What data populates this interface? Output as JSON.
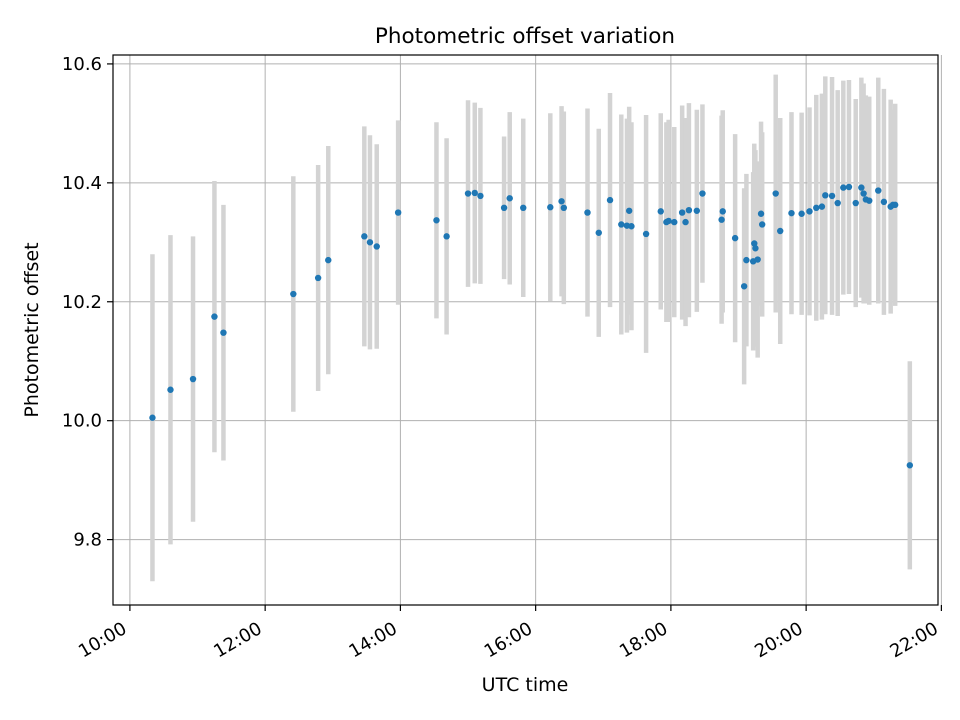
{
  "chart_data": {
    "type": "scatter",
    "title": "Photometric offset variation",
    "xlabel": "UTC time",
    "ylabel": "Photometric offset",
    "x_unit": "hour",
    "xlim": [
      "09:45",
      "21:57"
    ],
    "ylim": [
      9.69,
      10.615
    ],
    "x_ticks": [
      "10:00",
      "12:00",
      "14:00",
      "16:00",
      "18:00",
      "20:00",
      "22:00"
    ],
    "y_ticks": [
      "9.8",
      "10.0",
      "10.2",
      "10.4",
      "10.6"
    ],
    "grid": true,
    "colors": {
      "point": "#1f77b4",
      "errorbar": "#d3d3d3",
      "grid": "#b0b0b0"
    },
    "series": [
      {
        "x": [
          "10:20",
          "10:36",
          "10:56",
          "11:15",
          "11:23",
          "12:25",
          "12:47",
          "12:56",
          "13:28",
          "13:33",
          "13:39",
          "13:58",
          "14:32",
          "14:41",
          "15:00",
          "15:06",
          "15:11",
          "15:32",
          "15:37",
          "15:49",
          "16:13",
          "16:23",
          "16:25",
          "16:46",
          "16:56",
          "17:06",
          "17:16",
          "17:21",
          "17:23",
          "17:25",
          "17:38",
          "17:51",
          "17:56",
          "17:58",
          "18:03",
          "18:10",
          "18:13",
          "18:16",
          "18:23",
          "18:28",
          "18:45",
          "18:46",
          "18:57",
          "19:05",
          "19:07",
          "19:13",
          "19:14",
          "19:15",
          "19:17",
          "19:20",
          "19:21",
          "19:33",
          "19:37",
          "19:47",
          "19:56",
          "20:03",
          "20:09",
          "20:14",
          "20:17",
          "20:23",
          "20:28",
          "20:33",
          "20:38",
          "20:44",
          "20:49",
          "20:51",
          "20:53",
          "20:56",
          "21:04",
          "21:09",
          "21:15",
          "21:17",
          "21:19",
          "21:32"
        ],
        "y": [
          10.005,
          10.052,
          10.07,
          10.175,
          10.148,
          10.213,
          10.24,
          10.27,
          10.31,
          10.3,
          10.293,
          10.35,
          10.337,
          10.31,
          10.382,
          10.383,
          10.378,
          10.358,
          10.374,
          10.358,
          10.359,
          10.369,
          10.358,
          10.35,
          10.316,
          10.371,
          10.33,
          10.328,
          10.353,
          10.327,
          10.314,
          10.352,
          10.334,
          10.336,
          10.334,
          10.35,
          10.334,
          10.354,
          10.353,
          10.382,
          10.338,
          10.352,
          10.307,
          10.226,
          10.27,
          10.268,
          10.298,
          10.29,
          10.271,
          10.348,
          10.33,
          10.382,
          10.319,
          10.349,
          10.348,
          10.352,
          10.358,
          10.36,
          10.379,
          10.378,
          10.366,
          10.392,
          10.393,
          10.366,
          10.392,
          10.382,
          10.372,
          10.37,
          10.387,
          10.368,
          10.36,
          10.363,
          10.363,
          9.925
        ],
        "yerr": [
          0.275,
          0.26,
          0.24,
          0.228,
          0.215,
          0.198,
          0.19,
          0.192,
          0.185,
          0.18,
          0.172,
          0.155,
          0.165,
          0.165,
          0.157,
          0.152,
          0.148,
          0.12,
          0.145,
          0.15,
          0.158,
          0.16,
          0.162,
          0.175,
          0.175,
          0.18,
          0.185,
          0.18,
          0.175,
          0.175,
          0.2,
          0.165,
          0.168,
          0.17,
          0.16,
          0.18,
          0.175,
          0.18,
          0.17,
          0.15,
          0.175,
          0.17,
          0.175,
          0.165,
          0.145,
          0.15,
          0.168,
          0.165,
          0.165,
          0.155,
          0.155,
          0.2,
          0.19,
          0.17,
          0.17,
          0.175,
          0.19,
          0.19,
          0.2,
          0.2,
          0.19,
          0.18,
          0.18,
          0.175,
          0.185,
          0.185,
          0.175,
          0.175,
          0.19,
          0.19,
          0.18,
          0.16,
          0.17,
          0.175
        ]
      }
    ]
  }
}
